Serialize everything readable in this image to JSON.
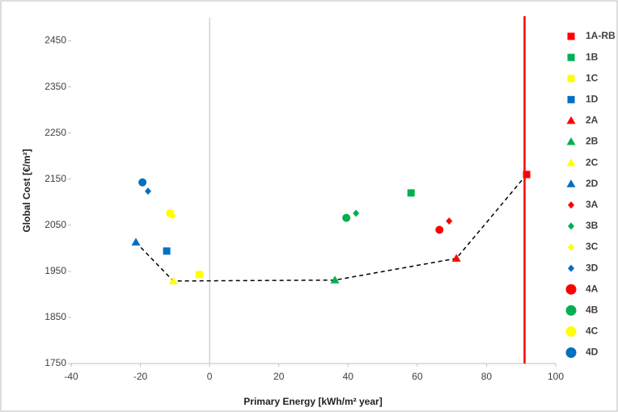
{
  "chart_data": {
    "type": "scatter",
    "x_label": "Primary Energy [kWh/m² year]",
    "y_label": "Global Cost [€/m²]",
    "xlim": [
      -40,
      100
    ],
    "xticks": [
      -40,
      -20,
      0,
      20,
      40,
      60,
      80,
      100
    ],
    "ylim": [
      1750,
      2500
    ],
    "yticks": [
      1750,
      1850,
      1950,
      2050,
      2150,
      2250,
      2350,
      2450
    ],
    "series": [
      {
        "name": "1A-RB",
        "color": "#ff0000",
        "marker": "square",
        "x": [
          91.6
        ],
        "y": [
          2160
        ]
      },
      {
        "name": "1B",
        "color": "#00b050",
        "marker": "square",
        "x": [
          58.2
        ],
        "y": [
          2120
        ]
      },
      {
        "name": "1C",
        "color": "#ffff00",
        "marker": "square",
        "x": [
          -3
        ],
        "y": [
          1943
        ]
      },
      {
        "name": "1D",
        "color": "#0070c0",
        "marker": "square",
        "x": [
          -12.4
        ],
        "y": [
          1994
        ]
      },
      {
        "name": "2A",
        "color": "#ff0000",
        "marker": "triangle",
        "x": [
          71.3
        ],
        "y": [
          1978
        ]
      },
      {
        "name": "2B",
        "color": "#00b050",
        "marker": "triangle",
        "x": [
          36.2
        ],
        "y": [
          1931
        ]
      },
      {
        "name": "2C",
        "color": "#ffff00",
        "marker": "triangle",
        "x": [
          -10.5
        ],
        "y": [
          1929
        ]
      },
      {
        "name": "2D",
        "color": "#0070c0",
        "marker": "triangle",
        "x": [
          -21.3
        ],
        "y": [
          2013
        ]
      },
      {
        "name": "3A",
        "color": "#ff0000",
        "marker": "diamond",
        "x": [
          69.2
        ],
        "y": [
          2059
        ]
      },
      {
        "name": "3B",
        "color": "#00b050",
        "marker": "diamond",
        "x": [
          42.3
        ],
        "y": [
          2076
        ]
      },
      {
        "name": "3C",
        "color": "#ffff00",
        "marker": "diamond",
        "x": [
          -10.7
        ],
        "y": [
          2071
        ]
      },
      {
        "name": "3D",
        "color": "#0070c0",
        "marker": "diamond",
        "x": [
          -17.8
        ],
        "y": [
          2124
        ]
      },
      {
        "name": "4A",
        "color": "#ff0000",
        "marker": "circle",
        "x": [
          66.4
        ],
        "y": [
          2040
        ]
      },
      {
        "name": "4B",
        "color": "#00b050",
        "marker": "circle",
        "x": [
          39.5
        ],
        "y": [
          2066
        ]
      },
      {
        "name": "4C",
        "color": "#ffff00",
        "marker": "circle",
        "x": [
          -11.4
        ],
        "y": [
          2076
        ]
      },
      {
        "name": "4D",
        "color": "#0070c0",
        "marker": "circle",
        "x": [
          -19.4
        ],
        "y": [
          2143
        ]
      }
    ],
    "front": {
      "color": "#000000",
      "x": [
        -21.3,
        -10.5,
        36.2,
        71.3,
        91.6
      ],
      "y": [
        2013,
        1929,
        1931,
        1978,
        2160
      ]
    },
    "reference_line": {
      "x": 91,
      "color": "#ff0000"
    }
  }
}
